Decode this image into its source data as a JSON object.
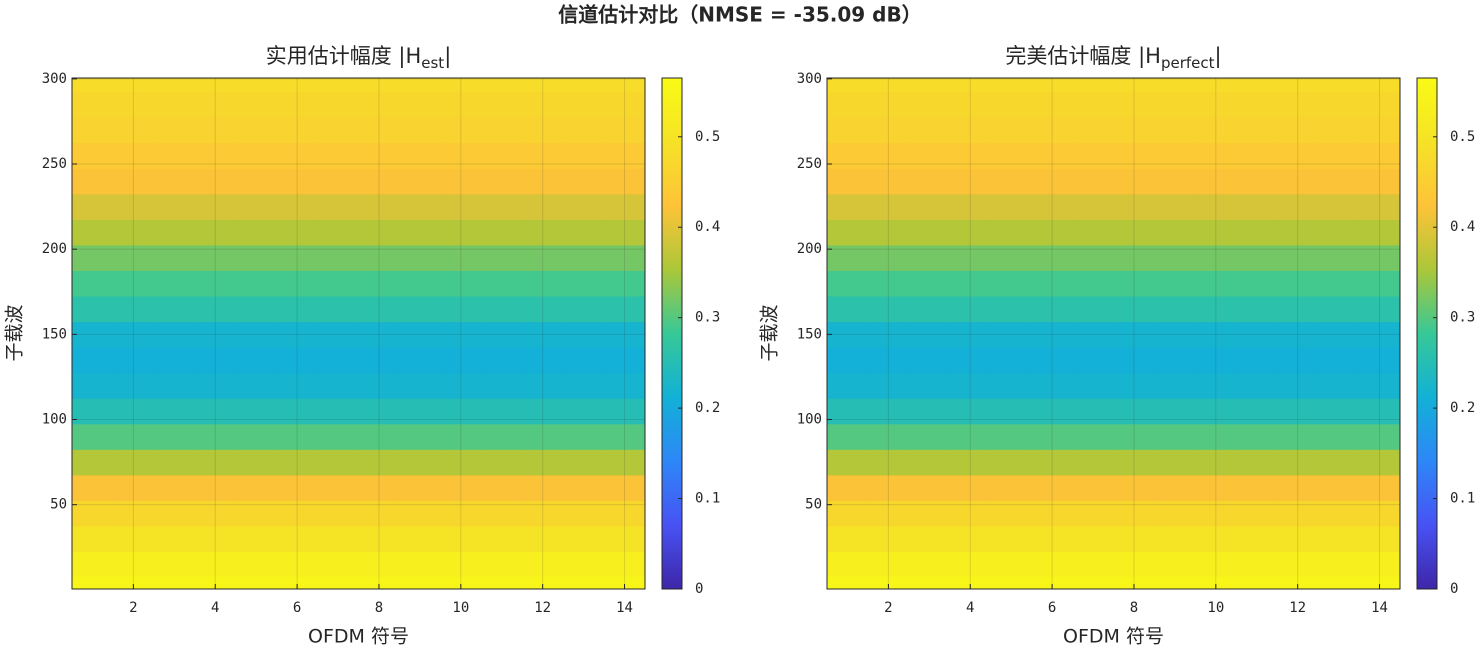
{
  "title": "信道估计对比（NMSE = -35.09 dB）",
  "chart_data": [
    {
      "type": "heatmap",
      "title": [
        "实用估计幅度  |H",
        "est",
        "|"
      ],
      "x_label": "OFDM 符号",
      "y_label": "子载波",
      "x": [
        1,
        2,
        3,
        4,
        5,
        6,
        7,
        8,
        9,
        10,
        11,
        12,
        13,
        14
      ],
      "y": [
        1,
        15,
        30,
        45,
        60,
        75,
        90,
        105,
        120,
        135,
        150,
        165,
        180,
        195,
        210,
        225,
        240,
        255,
        270,
        285,
        300
      ],
      "z": [
        [
          0.55,
          0.55,
          0.55,
          0.55,
          0.55,
          0.55,
          0.55,
          0.55,
          0.55,
          0.55,
          0.55,
          0.55,
          0.55,
          0.55
        ],
        [
          0.53,
          0.53,
          0.53,
          0.53,
          0.53,
          0.53,
          0.53,
          0.53,
          0.53,
          0.53,
          0.53,
          0.53,
          0.53,
          0.53
        ],
        [
          0.5,
          0.5,
          0.5,
          0.5,
          0.5,
          0.5,
          0.5,
          0.5,
          0.5,
          0.5,
          0.5,
          0.5,
          0.5,
          0.5
        ],
        [
          0.47,
          0.47,
          0.47,
          0.47,
          0.47,
          0.47,
          0.47,
          0.47,
          0.47,
          0.47,
          0.47,
          0.47,
          0.47,
          0.47
        ],
        [
          0.42,
          0.42,
          0.42,
          0.42,
          0.42,
          0.42,
          0.42,
          0.42,
          0.42,
          0.42,
          0.42,
          0.42,
          0.42,
          0.42
        ],
        [
          0.36,
          0.36,
          0.36,
          0.36,
          0.36,
          0.36,
          0.36,
          0.36,
          0.36,
          0.36,
          0.36,
          0.36,
          0.36,
          0.36
        ],
        [
          0.3,
          0.3,
          0.3,
          0.3,
          0.3,
          0.3,
          0.3,
          0.3,
          0.3,
          0.3,
          0.3,
          0.3,
          0.3,
          0.3
        ],
        [
          0.25,
          0.25,
          0.25,
          0.25,
          0.25,
          0.25,
          0.25,
          0.25,
          0.25,
          0.25,
          0.25,
          0.25,
          0.25,
          0.25
        ],
        [
          0.22,
          0.22,
          0.22,
          0.22,
          0.22,
          0.22,
          0.22,
          0.22,
          0.22,
          0.22,
          0.22,
          0.22,
          0.22,
          0.22
        ],
        [
          0.21,
          0.21,
          0.21,
          0.21,
          0.21,
          0.21,
          0.21,
          0.21,
          0.21,
          0.21,
          0.21,
          0.21,
          0.21,
          0.21
        ],
        [
          0.22,
          0.22,
          0.22,
          0.22,
          0.22,
          0.22,
          0.22,
          0.22,
          0.22,
          0.22,
          0.22,
          0.22,
          0.22,
          0.22
        ],
        [
          0.26,
          0.26,
          0.26,
          0.26,
          0.26,
          0.26,
          0.26,
          0.26,
          0.26,
          0.26,
          0.26,
          0.26,
          0.26,
          0.26
        ],
        [
          0.29,
          0.29,
          0.29,
          0.29,
          0.29,
          0.29,
          0.29,
          0.29,
          0.29,
          0.29,
          0.29,
          0.29,
          0.29,
          0.29
        ],
        [
          0.32,
          0.32,
          0.32,
          0.32,
          0.32,
          0.32,
          0.32,
          0.32,
          0.32,
          0.32,
          0.32,
          0.32,
          0.32,
          0.32
        ],
        [
          0.36,
          0.36,
          0.36,
          0.36,
          0.36,
          0.36,
          0.36,
          0.36,
          0.36,
          0.36,
          0.36,
          0.36,
          0.36,
          0.36
        ],
        [
          0.39,
          0.39,
          0.39,
          0.39,
          0.39,
          0.39,
          0.39,
          0.39,
          0.39,
          0.39,
          0.39,
          0.39,
          0.39,
          0.39
        ],
        [
          0.42,
          0.42,
          0.42,
          0.42,
          0.42,
          0.42,
          0.42,
          0.42,
          0.42,
          0.42,
          0.42,
          0.42,
          0.42,
          0.42
        ],
        [
          0.44,
          0.44,
          0.44,
          0.44,
          0.44,
          0.44,
          0.44,
          0.44,
          0.44,
          0.44,
          0.44,
          0.44,
          0.44,
          0.44
        ],
        [
          0.46,
          0.46,
          0.46,
          0.46,
          0.46,
          0.46,
          0.46,
          0.46,
          0.46,
          0.46,
          0.46,
          0.46,
          0.46,
          0.46
        ],
        [
          0.47,
          0.47,
          0.47,
          0.47,
          0.47,
          0.47,
          0.47,
          0.47,
          0.47,
          0.47,
          0.47,
          0.47,
          0.47,
          0.47
        ],
        [
          0.48,
          0.48,
          0.48,
          0.48,
          0.48,
          0.48,
          0.48,
          0.48,
          0.48,
          0.48,
          0.48,
          0.48,
          0.48,
          0.48
        ]
      ],
      "xlim": [
        0.5,
        14.5
      ],
      "ylim": [
        0.5,
        300.5
      ],
      "xticks": [
        2,
        4,
        6,
        8,
        10,
        12,
        14
      ],
      "yticks": [
        50,
        100,
        150,
        200,
        250,
        300
      ],
      "clim": [
        0,
        0.565
      ],
      "cticks": [
        0,
        0.1,
        0.2,
        0.3,
        0.4,
        0.5
      ],
      "colormap": "parula",
      "grid": true
    },
    {
      "type": "heatmap",
      "title": [
        "完美估计幅度  |H",
        "perfect",
        "|"
      ],
      "x_label": "OFDM 符号",
      "y_label": "子载波",
      "x": [
        1,
        2,
        3,
        4,
        5,
        6,
        7,
        8,
        9,
        10,
        11,
        12,
        13,
        14
      ],
      "y": [
        1,
        15,
        30,
        45,
        60,
        75,
        90,
        105,
        120,
        135,
        150,
        165,
        180,
        195,
        210,
        225,
        240,
        255,
        270,
        285,
        300
      ],
      "z": [
        [
          0.55,
          0.55,
          0.55,
          0.55,
          0.55,
          0.55,
          0.55,
          0.55,
          0.55,
          0.55,
          0.55,
          0.55,
          0.55,
          0.55
        ],
        [
          0.53,
          0.53,
          0.53,
          0.53,
          0.53,
          0.53,
          0.53,
          0.53,
          0.53,
          0.53,
          0.53,
          0.53,
          0.53,
          0.53
        ],
        [
          0.5,
          0.5,
          0.5,
          0.5,
          0.5,
          0.5,
          0.5,
          0.5,
          0.5,
          0.5,
          0.5,
          0.5,
          0.5,
          0.5
        ],
        [
          0.47,
          0.47,
          0.47,
          0.47,
          0.47,
          0.47,
          0.47,
          0.47,
          0.47,
          0.47,
          0.47,
          0.47,
          0.47,
          0.47
        ],
        [
          0.42,
          0.42,
          0.42,
          0.42,
          0.42,
          0.42,
          0.42,
          0.42,
          0.42,
          0.42,
          0.42,
          0.42,
          0.42,
          0.42
        ],
        [
          0.36,
          0.36,
          0.36,
          0.36,
          0.36,
          0.36,
          0.36,
          0.36,
          0.36,
          0.36,
          0.36,
          0.36,
          0.36,
          0.36
        ],
        [
          0.3,
          0.3,
          0.3,
          0.3,
          0.3,
          0.3,
          0.3,
          0.3,
          0.3,
          0.3,
          0.3,
          0.3,
          0.3,
          0.3
        ],
        [
          0.25,
          0.25,
          0.25,
          0.25,
          0.25,
          0.25,
          0.25,
          0.25,
          0.25,
          0.25,
          0.25,
          0.25,
          0.25,
          0.25
        ],
        [
          0.22,
          0.22,
          0.22,
          0.22,
          0.22,
          0.22,
          0.22,
          0.22,
          0.22,
          0.22,
          0.22,
          0.22,
          0.22,
          0.22
        ],
        [
          0.21,
          0.21,
          0.21,
          0.21,
          0.21,
          0.21,
          0.21,
          0.21,
          0.21,
          0.21,
          0.21,
          0.21,
          0.21,
          0.21
        ],
        [
          0.22,
          0.22,
          0.22,
          0.22,
          0.22,
          0.22,
          0.22,
          0.22,
          0.22,
          0.22,
          0.22,
          0.22,
          0.22,
          0.22
        ],
        [
          0.26,
          0.26,
          0.26,
          0.26,
          0.26,
          0.26,
          0.26,
          0.26,
          0.26,
          0.26,
          0.26,
          0.26,
          0.26,
          0.26
        ],
        [
          0.29,
          0.29,
          0.29,
          0.29,
          0.29,
          0.29,
          0.29,
          0.29,
          0.29,
          0.29,
          0.29,
          0.29,
          0.29,
          0.29
        ],
        [
          0.32,
          0.32,
          0.32,
          0.32,
          0.32,
          0.32,
          0.32,
          0.32,
          0.32,
          0.32,
          0.32,
          0.32,
          0.32,
          0.32
        ],
        [
          0.36,
          0.36,
          0.36,
          0.36,
          0.36,
          0.36,
          0.36,
          0.36,
          0.36,
          0.36,
          0.36,
          0.36,
          0.36,
          0.36
        ],
        [
          0.39,
          0.39,
          0.39,
          0.39,
          0.39,
          0.39,
          0.39,
          0.39,
          0.39,
          0.39,
          0.39,
          0.39,
          0.39,
          0.39
        ],
        [
          0.42,
          0.42,
          0.42,
          0.42,
          0.42,
          0.42,
          0.42,
          0.42,
          0.42,
          0.42,
          0.42,
          0.42,
          0.42,
          0.42
        ],
        [
          0.44,
          0.44,
          0.44,
          0.44,
          0.44,
          0.44,
          0.44,
          0.44,
          0.44,
          0.44,
          0.44,
          0.44,
          0.44,
          0.44
        ],
        [
          0.46,
          0.46,
          0.46,
          0.46,
          0.46,
          0.46,
          0.46,
          0.46,
          0.46,
          0.46,
          0.46,
          0.46,
          0.46,
          0.46
        ],
        [
          0.47,
          0.47,
          0.47,
          0.47,
          0.47,
          0.47,
          0.47,
          0.47,
          0.47,
          0.47,
          0.47,
          0.47,
          0.47,
          0.47
        ],
        [
          0.48,
          0.48,
          0.48,
          0.48,
          0.48,
          0.48,
          0.48,
          0.48,
          0.48,
          0.48,
          0.48,
          0.48,
          0.48,
          0.48
        ]
      ],
      "xlim": [
        0.5,
        14.5
      ],
      "ylim": [
        0.5,
        300.5
      ],
      "xticks": [
        2,
        4,
        6,
        8,
        10,
        12,
        14
      ],
      "yticks": [
        50,
        100,
        150,
        200,
        250,
        300
      ],
      "clim": [
        0,
        0.565
      ],
      "cticks": [
        0,
        0.1,
        0.2,
        0.3,
        0.4,
        0.5
      ],
      "colormap": "parula",
      "grid": true
    }
  ]
}
